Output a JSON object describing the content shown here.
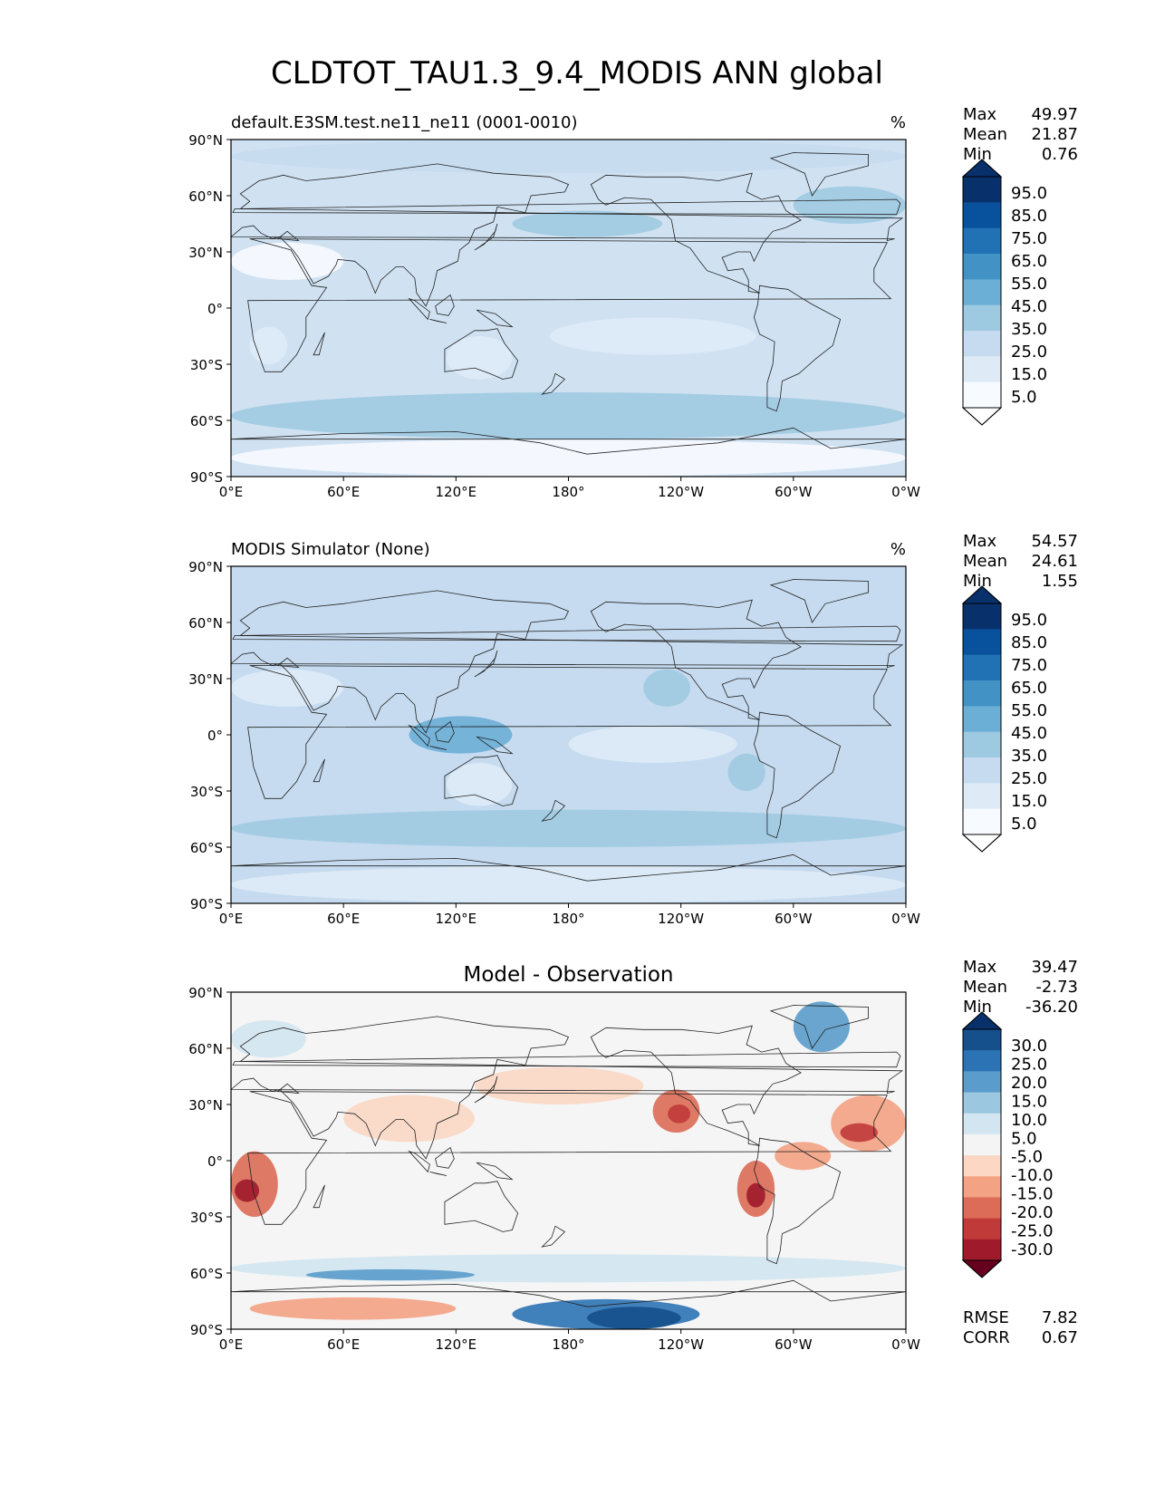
{
  "chart_data": {
    "title": "CLDTOT_TAU1.3_9.4_MODIS ANN global",
    "lat_ticks": [
      "90°N",
      "60°N",
      "30°N",
      "0°",
      "30°S",
      "60°S",
      "90°S"
    ],
    "lon_ticks": [
      "0°E",
      "60°E",
      "120°E",
      "180°",
      "120°W",
      "60°W",
      "0°W"
    ],
    "panels": [
      {
        "type": "contour-map",
        "left_title": "default.E3SM.test.ne11_ne11 (0001-0010)",
        "center_title": "",
        "units": "%",
        "stats": [
          {
            "label": "Max",
            "value": "49.97"
          },
          {
            "label": "Mean",
            "value": "21.87"
          },
          {
            "label": "Min",
            "value": "0.76"
          }
        ],
        "colorbar": {
          "levels": [
            "95.0",
            "85.0",
            "75.0",
            "65.0",
            "55.0",
            "45.0",
            "35.0",
            "25.0",
            "15.0",
            "5.0"
          ],
          "colors": [
            "#08306b",
            "#08519c",
            "#2171b5",
            "#4292c6",
            "#6baed6",
            "#9ecae1",
            "#c6dbef",
            "#deebf7",
            "#f7fbff"
          ],
          "extend_top": "#08306b",
          "extend_bottom": "#ffffff"
        },
        "background": "#d0e2f2",
        "regions": [
          {
            "name": "southern-ocean-band",
            "lon": [
              0,
              360
            ],
            "lat": [
              -45,
              -70
            ],
            "level": 5
          },
          {
            "name": "antarctica",
            "lon": [
              0,
              360
            ],
            "lat": [
              -70,
              -90
            ],
            "level": 8
          },
          {
            "name": "sahara-arabia",
            "lon": [
              0,
              60
            ],
            "lat": [
              35,
              15
            ],
            "level": 8
          },
          {
            "name": "south-africa-dry",
            "lon": [
              10,
              30
            ],
            "lat": [
              -10,
              -30
            ],
            "level": 7
          },
          {
            "name": "australia",
            "lon": [
              115,
              150
            ],
            "lat": [
              -15,
              -38
            ],
            "level": 7
          },
          {
            "name": "pacific-subtropical",
            "lon": [
              170,
              280
            ],
            "lat": [
              -5,
              -25
            ],
            "level": 7
          },
          {
            "name": "north-pacific-band",
            "lon": [
              150,
              230
            ],
            "lat": [
              52,
              38
            ],
            "level": 5
          },
          {
            "name": "north-atlantic-band",
            "lon": [
              300,
              360
            ],
            "lat": [
              65,
              45
            ],
            "level": 5
          },
          {
            "name": "arctic",
            "lon": [
              0,
              360
            ],
            "lat": [
              90,
              72
            ],
            "level": 6
          }
        ]
      },
      {
        "type": "contour-map",
        "left_title": "MODIS Simulator (None)",
        "center_title": "",
        "units": "%",
        "stats": [
          {
            "label": "Max",
            "value": "54.57"
          },
          {
            "label": "Mean",
            "value": "24.61"
          },
          {
            "label": "Min",
            "value": "1.55"
          }
        ],
        "colorbar": {
          "levels": [
            "95.0",
            "85.0",
            "75.0",
            "65.0",
            "55.0",
            "45.0",
            "35.0",
            "25.0",
            "15.0",
            "5.0"
          ],
          "colors": [
            "#08306b",
            "#08519c",
            "#2171b5",
            "#4292c6",
            "#6baed6",
            "#9ecae1",
            "#c6dbef",
            "#deebf7",
            "#f7fbff"
          ],
          "extend_top": "#08306b",
          "extend_bottom": "#ffffff"
        },
        "background": "#c6dbef",
        "regions": [
          {
            "name": "southern-ocean-band",
            "lon": [
              0,
              360
            ],
            "lat": [
              -40,
              -60
            ],
            "level": 5
          },
          {
            "name": "antarctica",
            "lon": [
              0,
              360
            ],
            "lat": [
              -70,
              -90
            ],
            "level": 7
          },
          {
            "name": "sahara-arabia",
            "lon": [
              0,
              60
            ],
            "lat": [
              35,
              15
            ],
            "level": 7
          },
          {
            "name": "australia",
            "lon": [
              115,
              150
            ],
            "lat": [
              -15,
              -38
            ],
            "level": 7
          },
          {
            "name": "pacific-subtropical",
            "lon": [
              180,
              270
            ],
            "lat": [
              5,
              -15
            ],
            "level": 7
          },
          {
            "name": "maritime-continent",
            "lon": [
              95,
              150
            ],
            "lat": [
              10,
              -10
            ],
            "level": 4
          },
          {
            "name": "ne-pacific-stratocumulus",
            "lon": [
              220,
              245
            ],
            "lat": [
              35,
              15
            ],
            "level": 5
          },
          {
            "name": "se-pacific-stratocumulus",
            "lon": [
              265,
              285
            ],
            "lat": [
              -10,
              -30
            ],
            "level": 5
          }
        ]
      },
      {
        "type": "contour-map",
        "left_title": "",
        "center_title": "Model - Observation",
        "units": "",
        "stats": [
          {
            "label": "Max",
            "value": "39.47"
          },
          {
            "label": "Mean",
            "value": "-2.73"
          },
          {
            "label": "Min",
            "value": "-36.20"
          }
        ],
        "extra_stats": [
          {
            "label": "RMSE",
            "value": "7.82"
          },
          {
            "label": "CORR",
            "value": "0.67"
          }
        ],
        "colorbar": {
          "levels": [
            "30.0",
            "25.0",
            "20.0",
            "15.0",
            "10.0",
            "5.0",
            "-5.0",
            "-10.0",
            "-15.0",
            "-20.0",
            "-25.0",
            "-30.0"
          ],
          "colors": [
            "#154f8c",
            "#2c73b5",
            "#5a9ccb",
            "#9bc7e0",
            "#d2e5f0",
            "#f4f4f4",
            "#fbd7c4",
            "#f3a283",
            "#dc6b57",
            "#c03a3a",
            "#9f1a2b"
          ],
          "extend_top": "#08306b",
          "extend_bottom": "#67001f"
        },
        "background": "#f5f5f5",
        "regions": [
          {
            "name": "namibia-stratocumulus",
            "lon": [
              0,
              25
            ],
            "lat": [
              5,
              -30
            ],
            "level": 8
          },
          {
            "name": "namibia-core",
            "lon": [
              2,
              15
            ],
            "lat": [
              -10,
              -22
            ],
            "level": 10
          },
          {
            "name": "california-stratocumulus",
            "lon": [
              225,
              250
            ],
            "lat": [
              38,
              15
            ],
            "level": 8
          },
          {
            "name": "california-core",
            "lon": [
              233,
              245
            ],
            "lat": [
              30,
              20
            ],
            "level": 9
          },
          {
            "name": "peru-stratocumulus",
            "lon": [
              270,
              290
            ],
            "lat": [
              0,
              -30
            ],
            "level": 8
          },
          {
            "name": "peru-core",
            "lon": [
              275,
              285
            ],
            "lat": [
              -12,
              -25
            ],
            "level": 10
          },
          {
            "name": "atlantic-northeast",
            "lon": [
              320,
              360
            ],
            "lat": [
              35,
              5
            ],
            "level": 7
          },
          {
            "name": "atlantic-northeast-core",
            "lon": [
              325,
              345
            ],
            "lat": [
              20,
              10
            ],
            "level": 9
          },
          {
            "name": "amazon",
            "lon": [
              290,
              320
            ],
            "lat": [
              10,
              -5
            ],
            "level": 7
          },
          {
            "name": "north-pacific-jet",
            "lon": [
              130,
              220
            ],
            "lat": [
              50,
              30
            ],
            "level": 6
          },
          {
            "name": "asia-south",
            "lon": [
              60,
              130
            ],
            "lat": [
              35,
              10
            ],
            "level": 6
          },
          {
            "name": "southern-ocean-blue",
            "lon": [
              0,
              360
            ],
            "lat": [
              -50,
              -65
            ],
            "level": 4
          },
          {
            "name": "southern-ocean-deep-blue",
            "lon": [
              40,
              130
            ],
            "lat": [
              -58,
              -64
            ],
            "level": 2
          },
          {
            "name": "antarctic-red",
            "lon": [
              10,
              120
            ],
            "lat": [
              -73,
              -85
            ],
            "level": 7
          },
          {
            "name": "ross-sea-blue",
            "lon": [
              150,
              250
            ],
            "lat": [
              -74,
              -90
            ],
            "level": 1
          },
          {
            "name": "ross-sea-core",
            "lon": [
              190,
              240
            ],
            "lat": [
              -78,
              -90
            ],
            "level": 0
          },
          {
            "name": "greenland-blue",
            "lon": [
              300,
              330
            ],
            "lat": [
              85,
              58
            ],
            "level": 2
          },
          {
            "name": "europe-arctic-blue",
            "lon": [
              0,
              40
            ],
            "lat": [
              75,
              55
            ],
            "level": 4
          }
        ]
      }
    ]
  }
}
